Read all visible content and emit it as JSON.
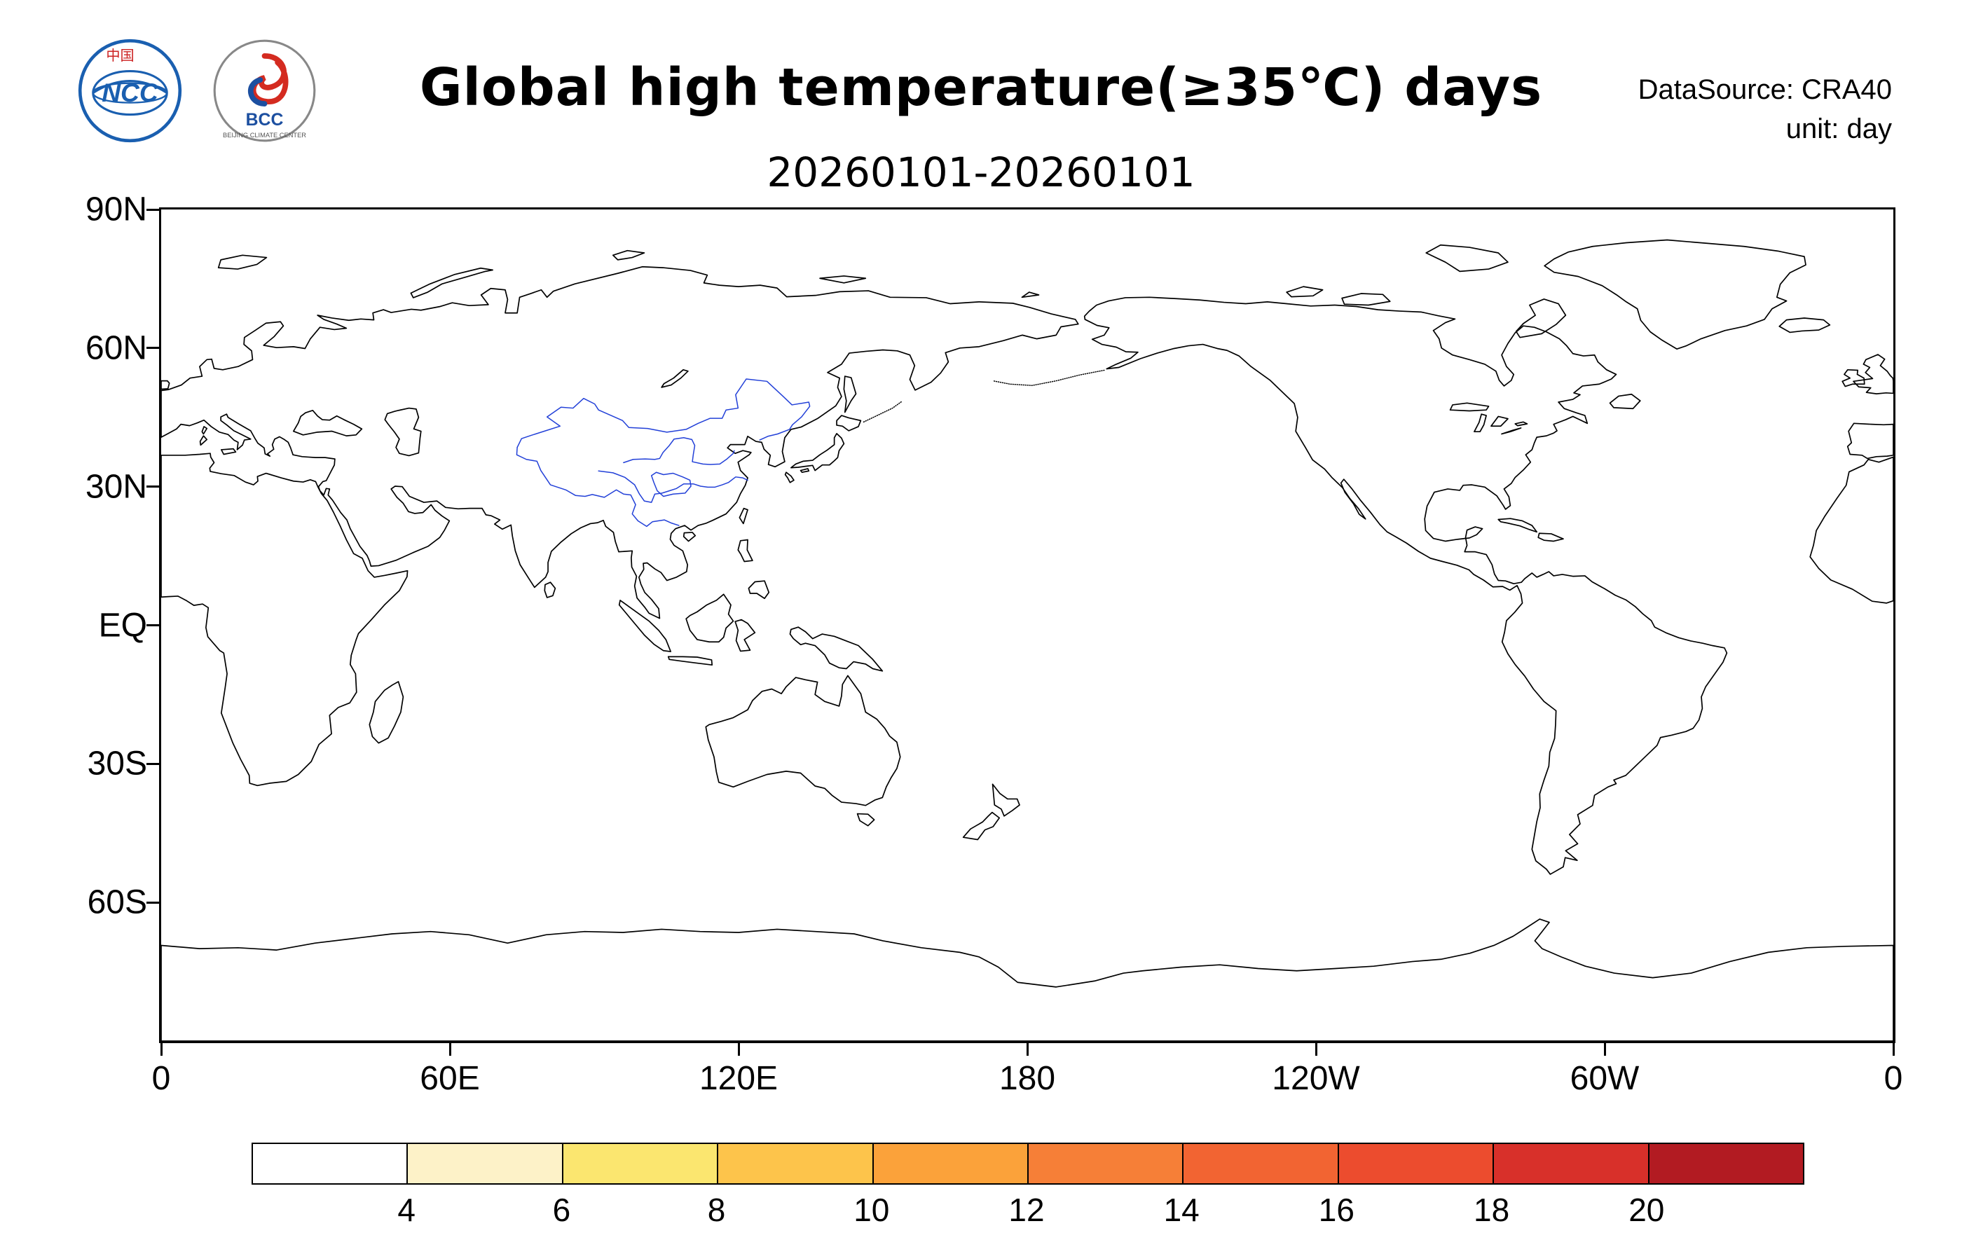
{
  "colors": {
    "coastline": "#000000",
    "china_lines": "#2240d8",
    "frame": "#000000",
    "ncc_blue": "#1a5fb0",
    "bcc_red": "#d42b20",
    "bcc_blue": "#1c4fa0"
  },
  "header": {
    "title": "Global high temperature(≥35℃) days",
    "subtitle": "20260101-20260101",
    "datasource": "DataSource: CRA40",
    "unit": "unit: day",
    "ncc_logo_text": "NCC",
    "ncc_logo_top": "中国",
    "bcc_logo_text": "BCC",
    "bcc_ring_text": "BEIJING CLIMATE CENTER"
  },
  "map": {
    "lat_ticks": [
      {
        "label": "90N",
        "lat": 90
      },
      {
        "label": "60N",
        "lat": 60
      },
      {
        "label": "30N",
        "lat": 30
      },
      {
        "label": "EQ",
        "lat": 0
      },
      {
        "label": "30S",
        "lat": -30
      },
      {
        "label": "60S",
        "lat": -60
      }
    ],
    "lon_ticks": [
      {
        "label": "0",
        "lon": 0
      },
      {
        "label": "60E",
        "lon": 60
      },
      {
        "label": "120E",
        "lon": 120
      },
      {
        "label": "180",
        "lon": 180
      },
      {
        "label": "120W",
        "lon": 240
      },
      {
        "label": "60W",
        "lon": 300
      },
      {
        "label": "0",
        "lon": 360
      }
    ]
  },
  "chart_data": {
    "type": "heatmap",
    "title": "Global high temperature(≥35℃) days",
    "period": "20260101-20260101",
    "datasource": "CRA40",
    "unit": "day",
    "projection": "equirectangular world map, Pacific-centered (longitude 0° at both left and right edges)",
    "lon_axis": {
      "tick_labels": [
        "0",
        "60E",
        "120E",
        "180",
        "120W",
        "60W",
        "0"
      ],
      "range_deg_east": [
        0,
        360
      ]
    },
    "lat_axis": {
      "tick_labels": [
        "90N",
        "60N",
        "30N",
        "EQ",
        "30S",
        "60S"
      ],
      "range_deg": [
        90,
        -90
      ]
    },
    "colorbar": {
      "tick_labels": [
        "4",
        "6",
        "8",
        "10",
        "12",
        "14",
        "16",
        "18",
        "20"
      ],
      "bin_edges": [
        4,
        6,
        8,
        10,
        12,
        14,
        16,
        18,
        20
      ],
      "colors": [
        "#ffffff",
        "#fdf2c8",
        "#fbe66f",
        "#fdc44b",
        "#fba23a",
        "#f67f37",
        "#f26432",
        "#ec4c2e",
        "#d8302a",
        "#b21b22"
      ],
      "legend_position": "bottom"
    },
    "values": "No shaded grid cells are visible on the map: all plotted values are below the lowest colorbar threshold (< 4 days). Black lines are coastlines; blue lines are China boundaries and major rivers (Yellow River, Yangtze)."
  }
}
